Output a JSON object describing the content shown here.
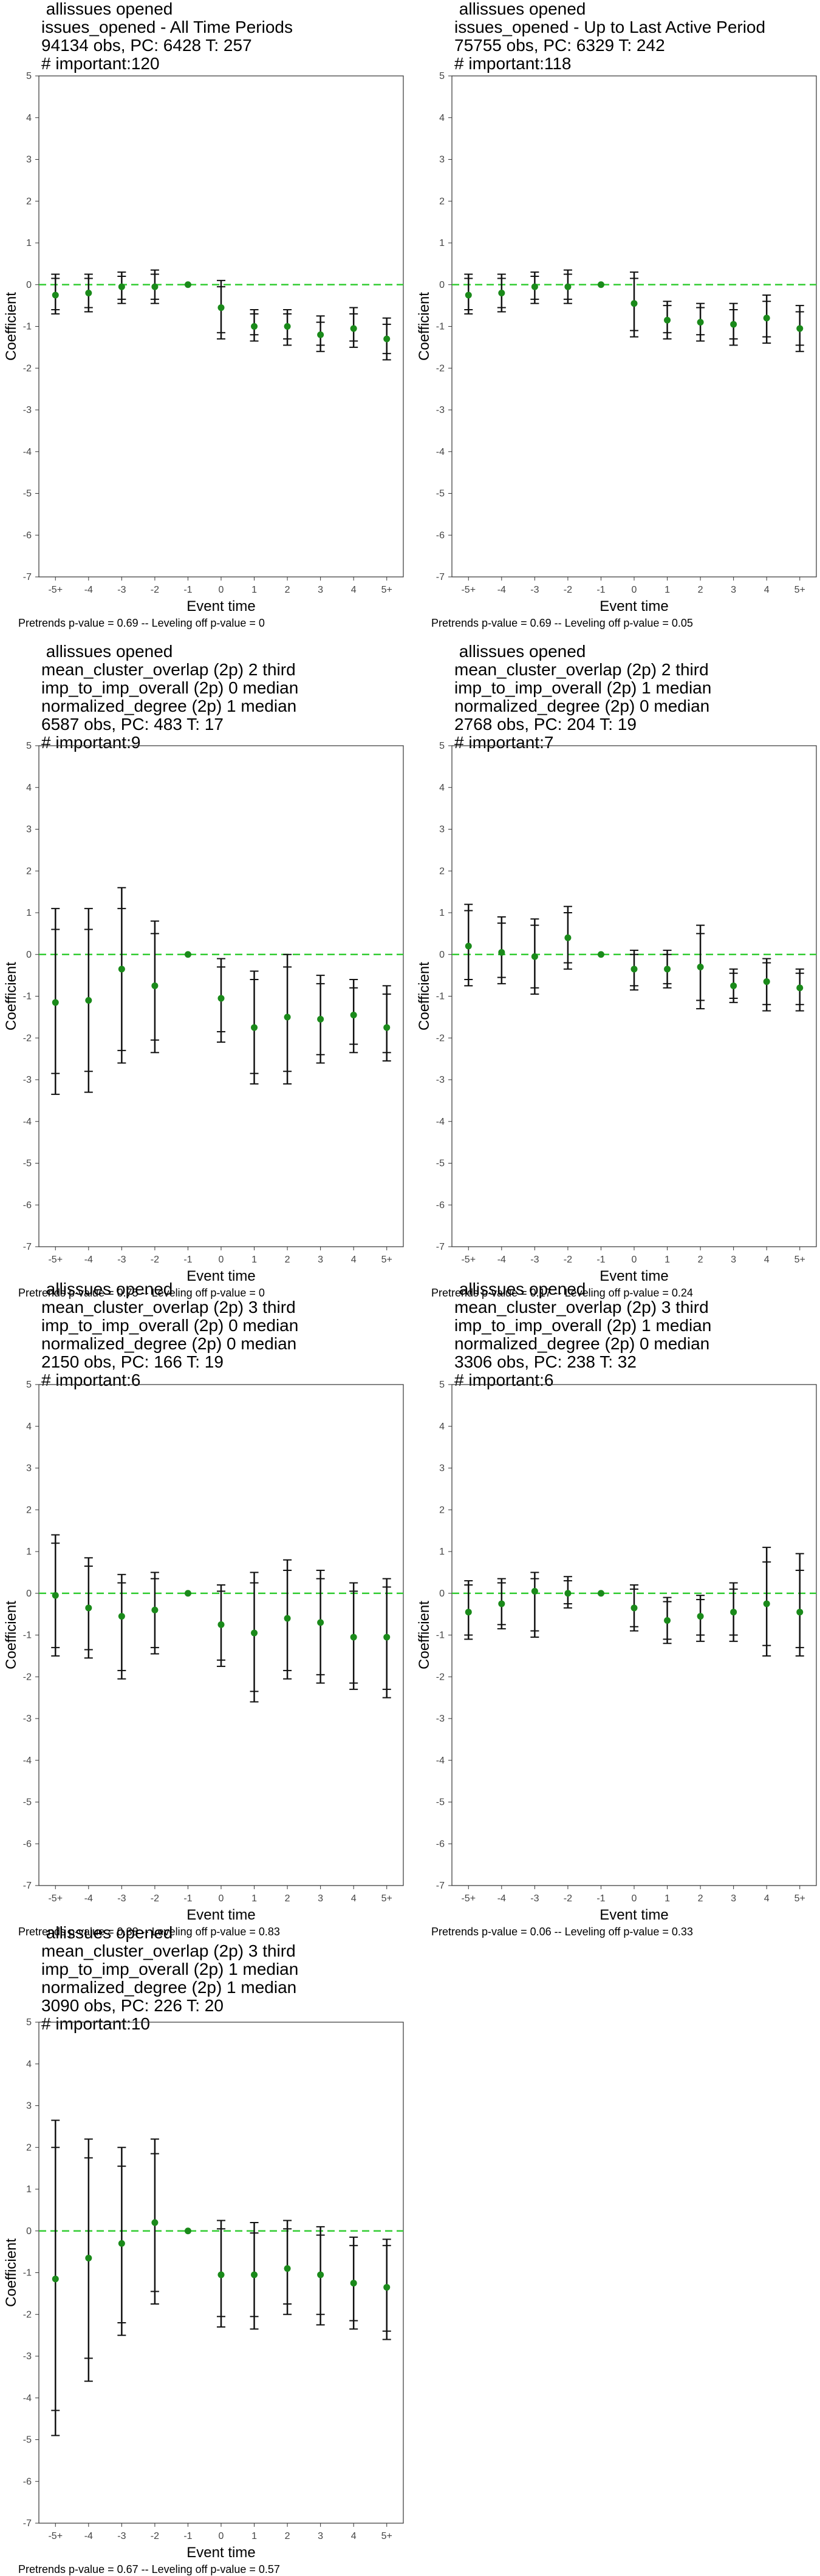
{
  "chart_data": [
    {
      "type": "scatter",
      "title_lines": [
        " allissues opened",
        "issues_opened - All Time Periods",
        "94134 obs, PC: 6428 T: 257",
        "# important:120"
      ],
      "xlabel": "Event time",
      "ylabel": "Coefficient",
      "categories": [
        "-5+",
        "-4",
        "-3",
        "-2",
        "-1",
        "0",
        "1",
        "2",
        "3",
        "4",
        "5+"
      ],
      "ylim": [
        -7,
        5
      ],
      "reference_line": 0,
      "point_color": "#1a8a1a",
      "reference_color": "#33cc33",
      "estimate": [
        -0.25,
        -0.2,
        -0.05,
        -0.05,
        0,
        -0.55,
        -1.0,
        -1.0,
        -1.2,
        -1.05,
        -1.3
      ],
      "ci95": [
        [
          -0.7,
          0.25
        ],
        [
          -0.65,
          0.25
        ],
        [
          -0.45,
          0.3
        ],
        [
          -0.45,
          0.35
        ],
        [
          0,
          0
        ],
        [
          -1.3,
          0.1
        ],
        [
          -1.35,
          -0.6
        ],
        [
          -1.45,
          -0.6
        ],
        [
          -1.6,
          -0.75
        ],
        [
          -1.5,
          -0.55
        ],
        [
          -1.8,
          -0.8
        ]
      ],
      "ci90": [
        [
          -0.6,
          0.15
        ],
        [
          -0.55,
          0.15
        ],
        [
          -0.35,
          0.2
        ],
        [
          -0.35,
          0.25
        ],
        [
          0,
          0
        ],
        [
          -1.15,
          -0.05
        ],
        [
          -1.2,
          -0.7
        ],
        [
          -1.3,
          -0.7
        ],
        [
          -1.45,
          -0.9
        ],
        [
          -1.35,
          -0.7
        ],
        [
          -1.65,
          -0.95
        ]
      ],
      "footnote": "Pretrends p-value = 0.69 -- Leveling off p-value = 0"
    },
    {
      "type": "scatter",
      "title_lines": [
        " allissues opened",
        "issues_opened - Up to Last Active Period",
        "75755 obs, PC: 6329 T: 242",
        "# important:118"
      ],
      "xlabel": "Event time",
      "ylabel": "Coefficient",
      "categories": [
        "-5+",
        "-4",
        "-3",
        "-2",
        "-1",
        "0",
        "1",
        "2",
        "3",
        "4",
        "5+"
      ],
      "ylim": [
        -7,
        5
      ],
      "reference_line": 0,
      "point_color": "#1a8a1a",
      "reference_color": "#33cc33",
      "estimate": [
        -0.25,
        -0.2,
        -0.05,
        -0.05,
        0,
        -0.45,
        -0.85,
        -0.9,
        -0.95,
        -0.8,
        -1.05
      ],
      "ci95": [
        [
          -0.7,
          0.25
        ],
        [
          -0.65,
          0.25
        ],
        [
          -0.45,
          0.3
        ],
        [
          -0.45,
          0.35
        ],
        [
          0,
          0
        ],
        [
          -1.25,
          0.3
        ],
        [
          -1.3,
          -0.4
        ],
        [
          -1.35,
          -0.45
        ],
        [
          -1.45,
          -0.45
        ],
        [
          -1.4,
          -0.25
        ],
        [
          -1.6,
          -0.5
        ]
      ],
      "ci90": [
        [
          -0.6,
          0.15
        ],
        [
          -0.55,
          0.15
        ],
        [
          -0.35,
          0.2
        ],
        [
          -0.35,
          0.25
        ],
        [
          0,
          0
        ],
        [
          -1.1,
          0.15
        ],
        [
          -1.15,
          -0.5
        ],
        [
          -1.2,
          -0.55
        ],
        [
          -1.3,
          -0.6
        ],
        [
          -1.25,
          -0.4
        ],
        [
          -1.45,
          -0.65
        ]
      ],
      "footnote": "Pretrends p-value = 0.69 -- Leveling off p-value = 0.05"
    },
    {
      "type": "scatter",
      "title_lines": [
        " allissues opened",
        "mean_cluster_overlap (2p) 2 third",
        "imp_to_imp_overall (2p) 0 median",
        "normalized_degree (2p) 1 median",
        "6587 obs, PC: 483 T: 17",
        "# important:9"
      ],
      "xlabel": "Event time",
      "ylabel": "Coefficient",
      "categories": [
        "-5+",
        "-4",
        "-3",
        "-2",
        "-1",
        "0",
        "1",
        "2",
        "3",
        "4",
        "5+"
      ],
      "ylim": [
        -7,
        5
      ],
      "reference_line": 0,
      "point_color": "#1a8a1a",
      "reference_color": "#33cc33",
      "estimate": [
        -1.15,
        -1.1,
        -0.35,
        -0.75,
        0,
        -1.05,
        -1.75,
        -1.5,
        -1.55,
        -1.45,
        -1.75
      ],
      "ci95": [
        [
          -3.35,
          1.1
        ],
        [
          -3.3,
          1.1
        ],
        [
          -2.6,
          1.6
        ],
        [
          -2.35,
          0.8
        ],
        [
          0,
          0
        ],
        [
          -2.1,
          -0.1
        ],
        [
          -3.1,
          -0.4
        ],
        [
          -3.1,
          0.0
        ],
        [
          -2.6,
          -0.5
        ],
        [
          -2.35,
          -0.6
        ],
        [
          -2.55,
          -0.75
        ]
      ],
      "ci90": [
        [
          -2.85,
          0.6
        ],
        [
          -2.8,
          0.6
        ],
        [
          -2.3,
          1.1
        ],
        [
          -2.05,
          0.5
        ],
        [
          0,
          0
        ],
        [
          -1.85,
          -0.3
        ],
        [
          -2.85,
          -0.6
        ],
        [
          -2.8,
          -0.3
        ],
        [
          -2.4,
          -0.7
        ],
        [
          -2.15,
          -0.8
        ],
        [
          -2.35,
          -0.95
        ]
      ],
      "footnote": "Pretrends p-value = 0.75 -- Leveling off p-value = 0"
    },
    {
      "type": "scatter",
      "title_lines": [
        " allissues opened",
        "mean_cluster_overlap (2p) 2 third",
        "imp_to_imp_overall (2p) 1 median",
        "normalized_degree (2p) 0 median",
        "2768 obs, PC: 204 T: 19",
        "# important:7"
      ],
      "xlabel": "Event time",
      "ylabel": "Coefficient",
      "categories": [
        "-5+",
        "-4",
        "-3",
        "-2",
        "-1",
        "0",
        "1",
        "2",
        "3",
        "4",
        "5+"
      ],
      "ylim": [
        -7,
        5
      ],
      "reference_line": 0,
      "point_color": "#1a8a1a",
      "reference_color": "#33cc33",
      "estimate": [
        0.2,
        0.05,
        -0.05,
        0.4,
        0,
        -0.35,
        -0.35,
        -0.3,
        -0.75,
        -0.65,
        -0.8
      ],
      "ci95": [
        [
          -0.75,
          1.2
        ],
        [
          -0.7,
          0.9
        ],
        [
          -0.95,
          0.85
        ],
        [
          -0.35,
          1.15
        ],
        [
          0,
          0
        ],
        [
          -0.85,
          0.1
        ],
        [
          -0.8,
          0.1
        ],
        [
          -1.3,
          0.7
        ],
        [
          -1.15,
          -0.35
        ],
        [
          -1.35,
          -0.1
        ],
        [
          -1.35,
          -0.35
        ]
      ],
      "ci90": [
        [
          -0.6,
          1.05
        ],
        [
          -0.55,
          0.75
        ],
        [
          -0.8,
          0.7
        ],
        [
          -0.2,
          1.0
        ],
        [
          0,
          0
        ],
        [
          -0.75,
          0.0
        ],
        [
          -0.7,
          0.0
        ],
        [
          -1.1,
          0.5
        ],
        [
          -1.05,
          -0.45
        ],
        [
          -1.2,
          -0.2
        ],
        [
          -1.2,
          -0.45
        ]
      ],
      "footnote": "Pretrends p-value = 0.17 -- Leveling off p-value = 0.24"
    },
    {
      "type": "scatter",
      "title_lines": [
        " allissues opened",
        "mean_cluster_overlap (2p) 3 third",
        "imp_to_imp_overall (2p) 0 median",
        "normalized_degree (2p) 0 median",
        "2150 obs, PC: 166 T: 19",
        "# important:6"
      ],
      "xlabel": "Event time",
      "ylabel": "Coefficient",
      "categories": [
        "-5+",
        "-4",
        "-3",
        "-2",
        "-1",
        "0",
        "1",
        "2",
        "3",
        "4",
        "5+"
      ],
      "ylim": [
        -7,
        5
      ],
      "reference_line": 0,
      "point_color": "#1a8a1a",
      "reference_color": "#33cc33",
      "estimate": [
        -0.05,
        -0.35,
        -0.55,
        -0.4,
        0,
        -0.75,
        -0.95,
        -0.6,
        -0.7,
        -1.05,
        -1.05
      ],
      "ci95": [
        [
          -1.5,
          1.4
        ],
        [
          -1.55,
          0.85
        ],
        [
          -2.05,
          0.45
        ],
        [
          -1.45,
          0.5
        ],
        [
          0,
          0
        ],
        [
          -1.75,
          0.2
        ],
        [
          -2.6,
          0.5
        ],
        [
          -2.05,
          0.8
        ],
        [
          -2.15,
          0.55
        ],
        [
          -2.3,
          0.25
        ],
        [
          -2.5,
          0.35
        ]
      ],
      "ci90": [
        [
          -1.3,
          1.2
        ],
        [
          -1.35,
          0.65
        ],
        [
          -1.85,
          0.25
        ],
        [
          -1.3,
          0.35
        ],
        [
          0,
          0
        ],
        [
          -1.6,
          0.05
        ],
        [
          -2.35,
          0.25
        ],
        [
          -1.85,
          0.55
        ],
        [
          -1.95,
          0.35
        ],
        [
          -2.15,
          0.05
        ],
        [
          -2.3,
          0.15
        ]
      ],
      "footnote": "Pretrends p-value = 0.38 -- Leveling off p-value = 0.83"
    },
    {
      "type": "scatter",
      "title_lines": [
        " allissues opened",
        "mean_cluster_overlap (2p) 3 third",
        "imp_to_imp_overall (2p) 1 median",
        "normalized_degree (2p) 0 median",
        "3306 obs, PC: 238 T: 32",
        "# important:6"
      ],
      "xlabel": "Event time",
      "ylabel": "Coefficient",
      "categories": [
        "-5+",
        "-4",
        "-3",
        "-2",
        "-1",
        "0",
        "1",
        "2",
        "3",
        "4",
        "5+"
      ],
      "ylim": [
        -7,
        5
      ],
      "reference_line": 0,
      "point_color": "#1a8a1a",
      "reference_color": "#33cc33",
      "estimate": [
        -0.45,
        -0.25,
        0.05,
        0.0,
        0,
        -0.35,
        -0.65,
        -0.55,
        -0.45,
        -0.25,
        -0.45
      ],
      "ci95": [
        [
          -1.1,
          0.3
        ],
        [
          -0.85,
          0.35
        ],
        [
          -1.05,
          0.5
        ],
        [
          -0.35,
          0.4
        ],
        [
          0,
          0
        ],
        [
          -0.9,
          0.2
        ],
        [
          -1.2,
          -0.1
        ],
        [
          -1.15,
          -0.05
        ],
        [
          -1.15,
          0.25
        ],
        [
          -1.5,
          1.1
        ],
        [
          -1.5,
          0.95
        ]
      ],
      "ci90": [
        [
          -1.0,
          0.2
        ],
        [
          -0.75,
          0.25
        ],
        [
          -0.9,
          0.35
        ],
        [
          -0.25,
          0.3
        ],
        [
          0,
          0
        ],
        [
          -0.8,
          0.1
        ],
        [
          -1.1,
          -0.2
        ],
        [
          -1.0,
          -0.15
        ],
        [
          -1.0,
          0.1
        ],
        [
          -1.25,
          0.75
        ],
        [
          -1.3,
          0.55
        ]
      ],
      "footnote": "Pretrends p-value = 0.06 -- Leveling off p-value = 0.33"
    },
    {
      "type": "scatter",
      "title_lines": [
        " allissues opened",
        "mean_cluster_overlap (2p) 3 third",
        "imp_to_imp_overall (2p) 1 median",
        "normalized_degree (2p) 1 median",
        "3090 obs, PC: 226 T: 20",
        "# important:10"
      ],
      "xlabel": "Event time",
      "ylabel": "Coefficient",
      "categories": [
        "-5+",
        "-4",
        "-3",
        "-2",
        "-1",
        "0",
        "1",
        "2",
        "3",
        "4",
        "5+"
      ],
      "ylim": [
        -7,
        5
      ],
      "reference_line": 0,
      "point_color": "#1a8a1a",
      "reference_color": "#33cc33",
      "estimate": [
        -1.15,
        -0.65,
        -0.3,
        0.2,
        0,
        -1.05,
        -1.05,
        -0.9,
        -1.05,
        -1.25,
        -1.35
      ],
      "ci95": [
        [
          -4.9,
          2.65
        ],
        [
          -3.6,
          2.2
        ],
        [
          -2.5,
          2.0
        ],
        [
          -1.75,
          2.2
        ],
        [
          0,
          0
        ],
        [
          -2.3,
          0.25
        ],
        [
          -2.35,
          0.2
        ],
        [
          -2.0,
          0.25
        ],
        [
          -2.25,
          0.1
        ],
        [
          -2.35,
          -0.15
        ],
        [
          -2.6,
          -0.2
        ]
      ],
      "ci90": [
        [
          -4.3,
          2.0
        ],
        [
          -3.05,
          1.75
        ],
        [
          -2.2,
          1.55
        ],
        [
          -1.45,
          1.85
        ],
        [
          0,
          0
        ],
        [
          -2.05,
          0.05
        ],
        [
          -2.05,
          -0.05
        ],
        [
          -1.75,
          0.05
        ],
        [
          -2.0,
          -0.1
        ],
        [
          -2.15,
          -0.35
        ],
        [
          -2.4,
          -0.35
        ]
      ],
      "footnote": "Pretrends p-value = 0.67 -- Leveling off p-value = 0.57"
    }
  ]
}
